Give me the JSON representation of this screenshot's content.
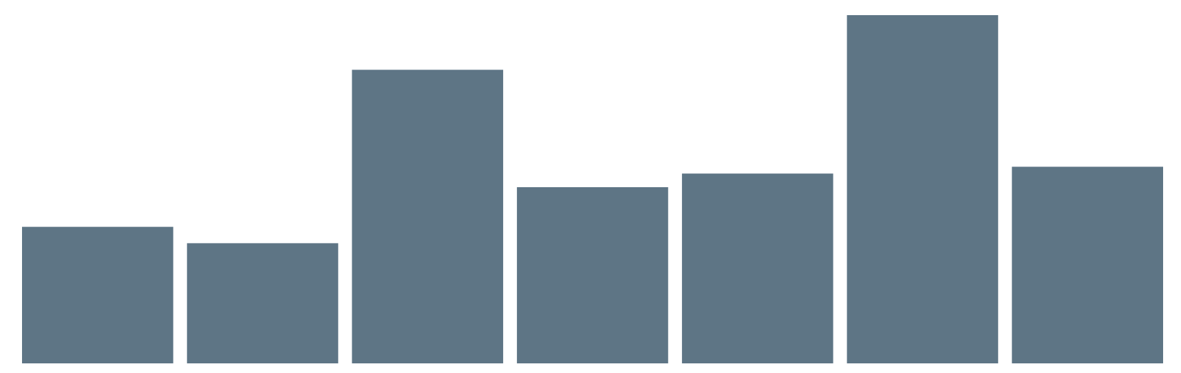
{
  "chart_data": {
    "type": "bar",
    "categories": [
      "",
      "",
      "",
      "",
      "",
      "",
      ""
    ],
    "values": [
      200,
      176,
      430,
      258,
      278,
      510,
      288
    ],
    "ylim": [
      0,
      510
    ],
    "grid": false,
    "legend": "none",
    "bar_color": "#5e7585"
  }
}
